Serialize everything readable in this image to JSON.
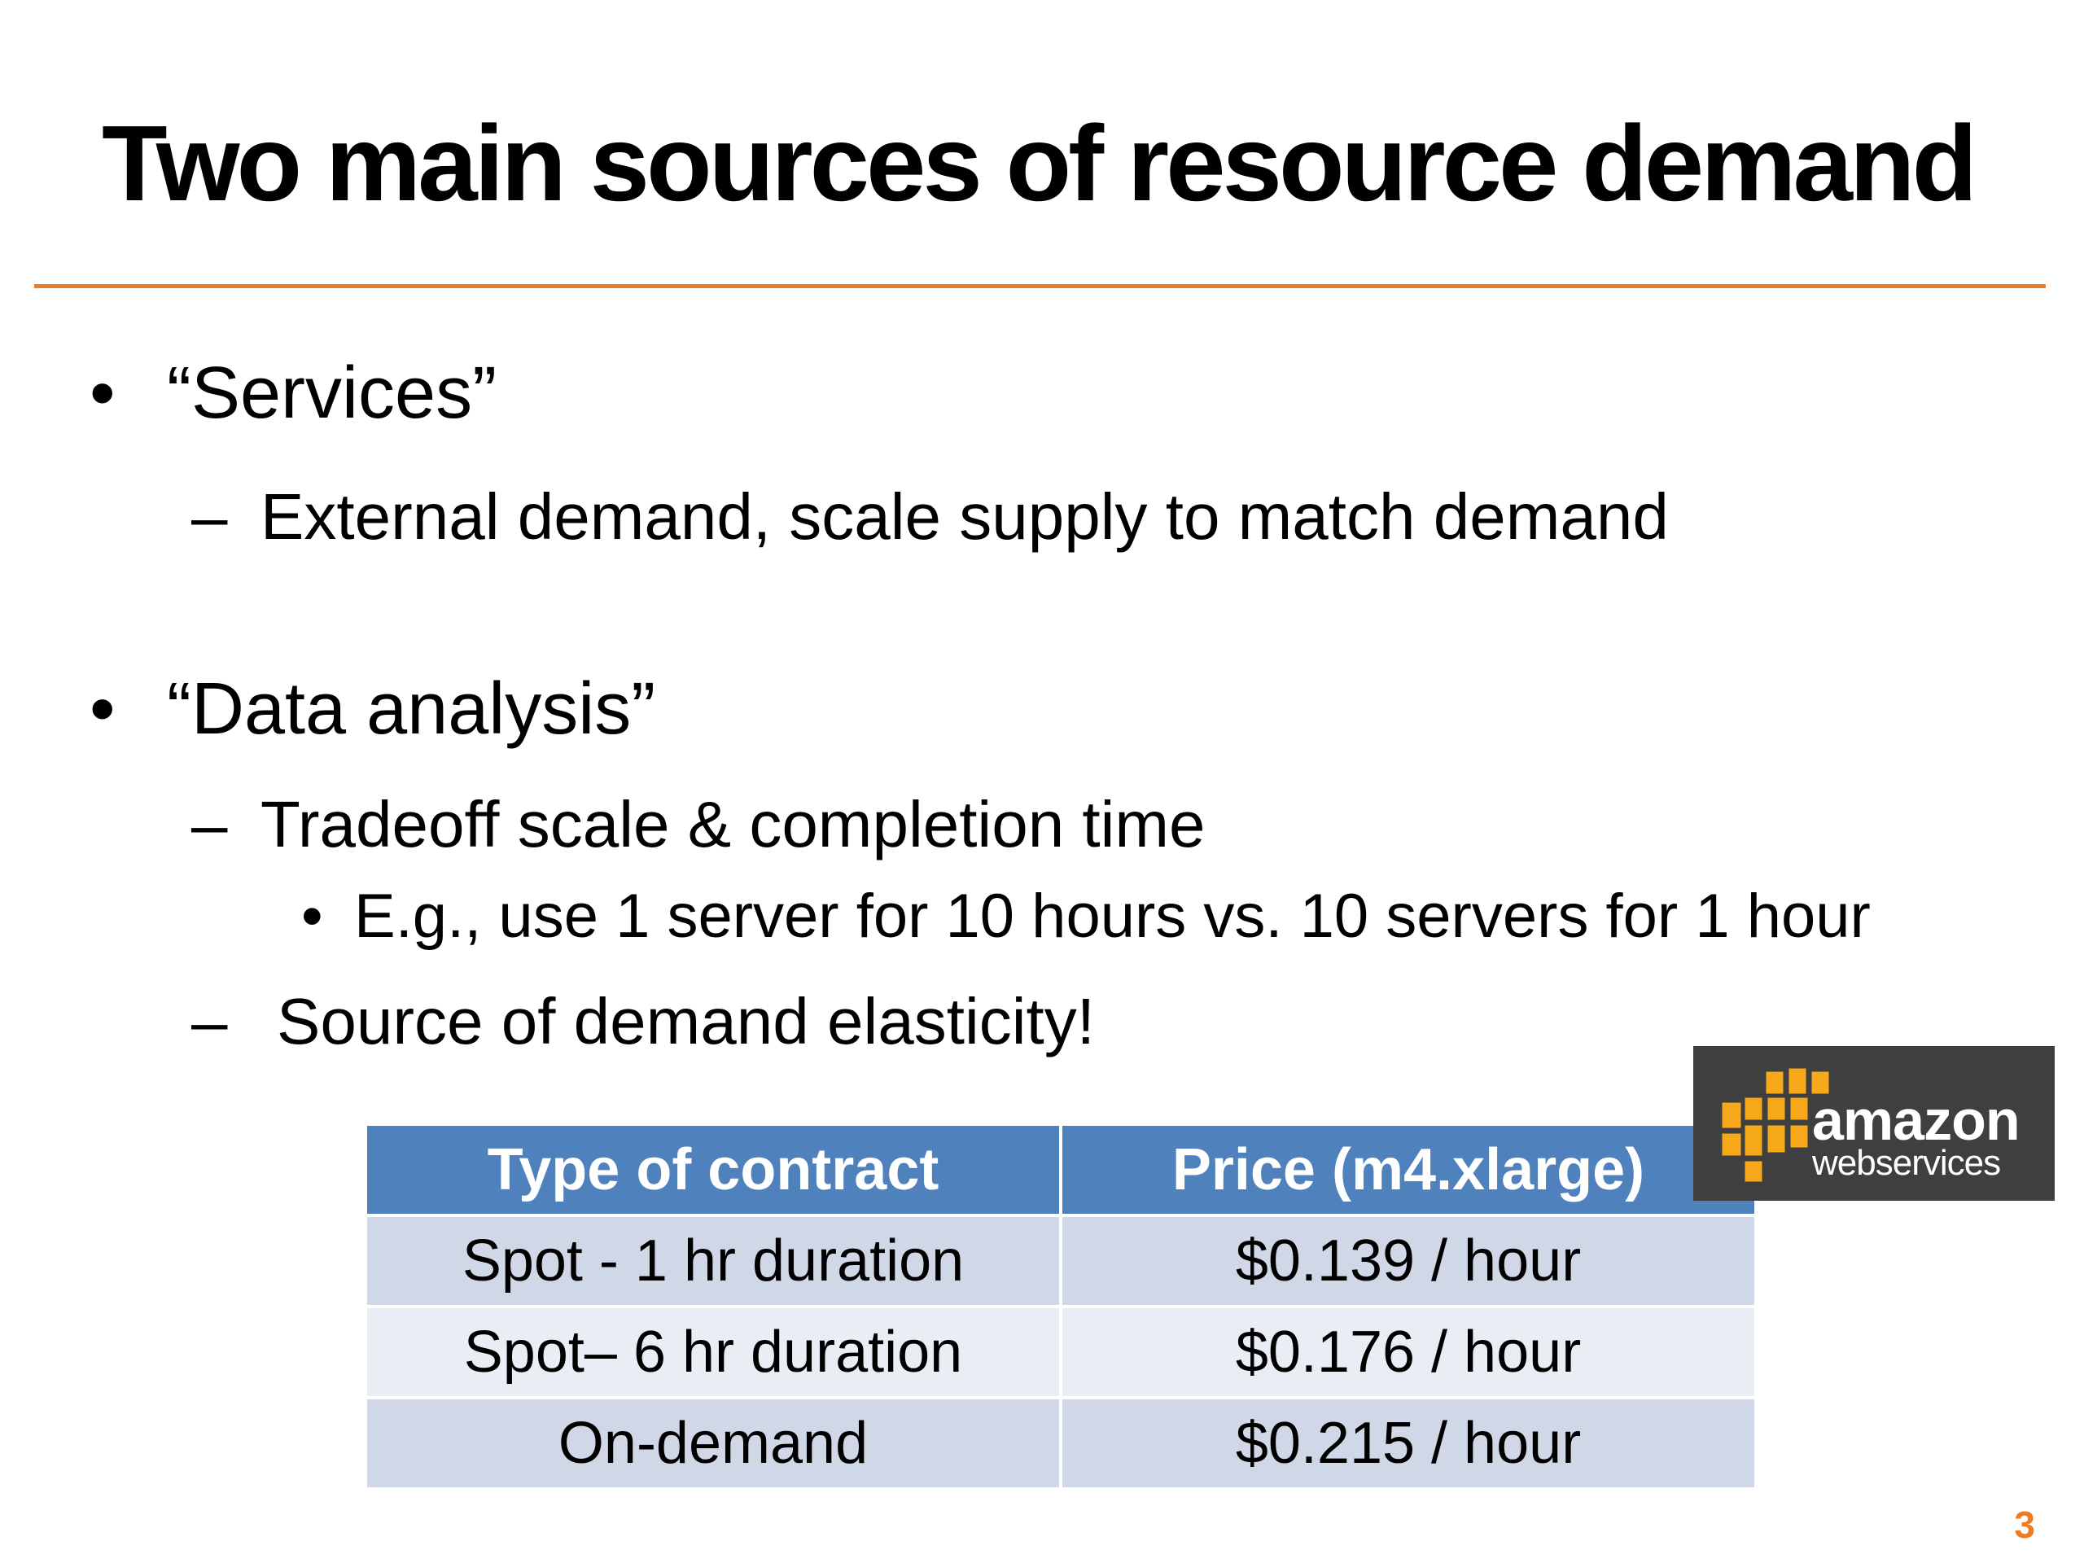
{
  "slide": {
    "title": "Two main sources of resource demand",
    "page_number": "3",
    "accent_color": "#f07c22"
  },
  "bullets": [
    {
      "level": 1,
      "marker": "•",
      "text": "“Services”"
    },
    {
      "level": 2,
      "marker": "–",
      "text": "External demand, scale supply to match demand"
    },
    {
      "level": 1,
      "marker": "•",
      "text": "“Data analysis”"
    },
    {
      "level": 2,
      "marker": "–",
      "text": "Tradeoff scale & completion time"
    },
    {
      "level": 3,
      "marker": "•",
      "text": "E.g., use 1 server for 10 hours vs. 10 servers for 1 hour"
    },
    {
      "level": 2,
      "marker": "–",
      "text": "Source of demand elasticity!"
    }
  ],
  "table": {
    "headers": [
      "Type of contract",
      "Price (m4.xlarge)"
    ],
    "rows": [
      [
        "Spot - 1 hr duration",
        "$0.139 / hour"
      ],
      [
        "Spot– 6 hr duration",
        "$0.176 / hour"
      ],
      [
        "On-demand",
        "$0.215  / hour"
      ]
    ],
    "header_color": "#4f81bd",
    "row_color_odd": "#d0d8e8",
    "row_color_even": "#e9edf4"
  },
  "logo": {
    "icon": "aws-cubes-icon",
    "word": "amazon",
    "sub": "webservices",
    "cube_color": "#f7a81b",
    "background": "#3f3f3f"
  }
}
